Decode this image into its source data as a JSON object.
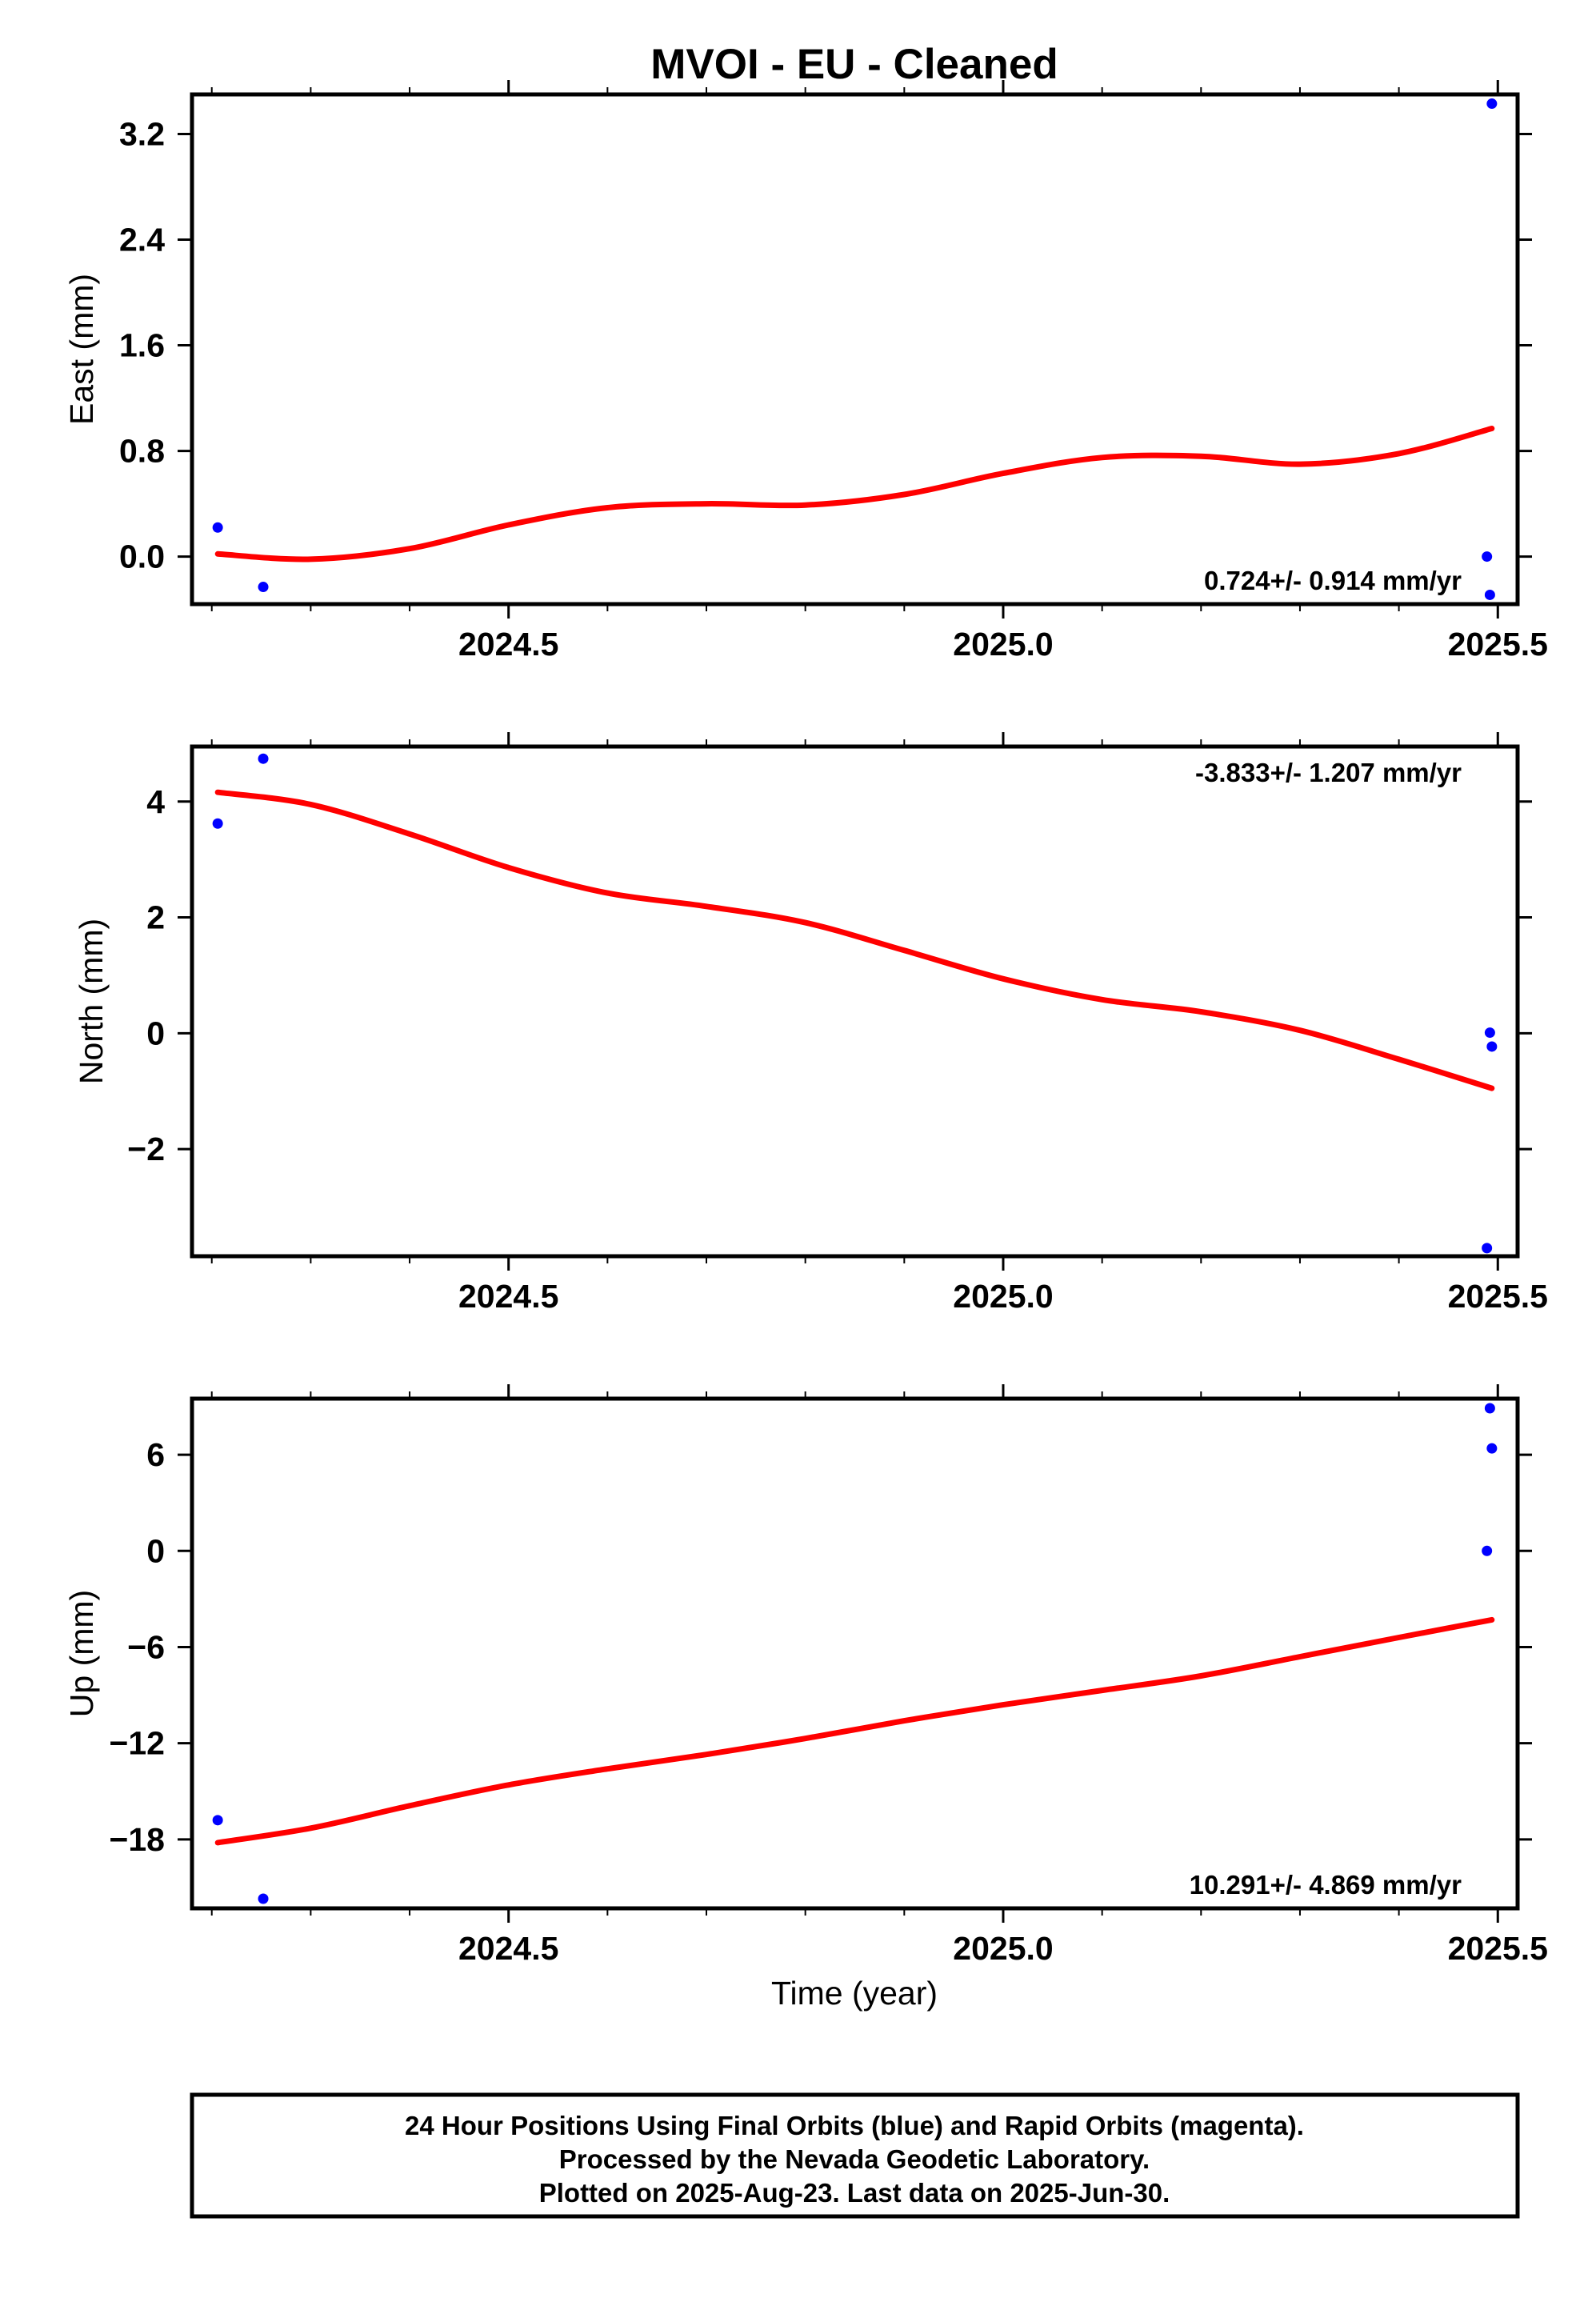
{
  "title": "MVOI  - EU - Cleaned",
  "xlabel": "Time (year)",
  "footer": [
    "24 Hour Positions Using Final Orbits (blue) and Rapid Orbits (magenta).",
    "Processed by the Nevada Geodetic Laboratory.",
    "Plotted on 2025-Aug-23. Last data on 2025-Jun-30."
  ],
  "colors": {
    "final_orbits": "#0000ff",
    "fit": "#ff0000",
    "frame": "#000000"
  },
  "chart_data": [
    {
      "type": "scatter",
      "ylabel": "East (mm)",
      "xlim": [
        2024.18,
        2025.52
      ],
      "ylim": [
        -0.36,
        3.5
      ],
      "yticks": [
        0.0,
        0.8,
        1.6,
        2.4,
        3.2
      ],
      "ytick_labels": [
        "0.0",
        "0.8",
        "1.6",
        "2.4",
        "3.2"
      ],
      "xticks": [
        2024.5,
        2025.0,
        2025.5
      ],
      "xtick_labels": [
        "2024.5",
        "2025.0",
        "2025.5"
      ],
      "rate_label": "0.724+/- 0.914 mm/yr",
      "rate_position": "bottom-right",
      "series": [
        {
          "kind": "points",
          "x": [
            2024.206,
            2024.252,
            2025.489,
            2025.492,
            2025.494
          ],
          "y": [
            0.22,
            -0.23,
            0.0,
            -0.29,
            3.43
          ]
        },
        {
          "kind": "fit",
          "x": [
            2024.206,
            2024.3,
            2024.4,
            2024.5,
            2024.6,
            2024.7,
            2024.8,
            2024.9,
            2025.0,
            2025.1,
            2025.2,
            2025.3,
            2025.4,
            2025.494
          ],
          "y": [
            0.02,
            -0.02,
            0.06,
            0.24,
            0.37,
            0.4,
            0.39,
            0.47,
            0.63,
            0.75,
            0.76,
            0.7,
            0.78,
            0.97
          ]
        }
      ]
    },
    {
      "type": "scatter",
      "ylabel": "North (mm)",
      "xlim": [
        2024.18,
        2025.52
      ],
      "ylim": [
        -3.85,
        4.95
      ],
      "yticks": [
        -2,
        0,
        2,
        4
      ],
      "ytick_labels": [
        "−2",
        "0",
        "2",
        "4"
      ],
      "xticks": [
        2024.5,
        2025.0,
        2025.5
      ],
      "xtick_labels": [
        "2024.5",
        "2025.0",
        "2025.5"
      ],
      "rate_label": "-3.833+/- 1.207 mm/yr",
      "rate_position": "top-right",
      "series": [
        {
          "kind": "points",
          "x": [
            2024.206,
            2024.252,
            2025.489,
            2025.492,
            2025.494
          ],
          "y": [
            3.62,
            4.74,
            -3.71,
            0.01,
            -0.23
          ]
        },
        {
          "kind": "fit",
          "x": [
            2024.206,
            2024.3,
            2024.4,
            2024.5,
            2024.6,
            2024.7,
            2024.8,
            2024.9,
            2025.0,
            2025.1,
            2025.2,
            2025.3,
            2025.4,
            2025.494
          ],
          "y": [
            4.16,
            3.95,
            3.44,
            2.86,
            2.42,
            2.19,
            1.91,
            1.43,
            0.94,
            0.58,
            0.37,
            0.05,
            -0.45,
            -0.95
          ]
        }
      ]
    },
    {
      "type": "scatter",
      "ylabel": "Up (mm)",
      "xlim": [
        2024.18,
        2025.52
      ],
      "ylim": [
        -22.3,
        9.5
      ],
      "yticks": [
        -18,
        -12,
        -6,
        0,
        6
      ],
      "ytick_labels": [
        "−18",
        "−12",
        "−6",
        "0",
        "6"
      ],
      "xticks": [
        2024.5,
        2025.0,
        2025.5
      ],
      "xtick_labels": [
        "2024.5",
        "2025.0",
        "2025.5"
      ],
      "rate_label": "10.291+/- 4.869 mm/yr",
      "rate_position": "bottom-right",
      "series": [
        {
          "kind": "points",
          "x": [
            2024.206,
            2024.252,
            2025.489,
            2025.492,
            2025.494
          ],
          "y": [
            -16.8,
            -21.7,
            0.0,
            8.9,
            6.4
          ]
        },
        {
          "kind": "fit",
          "x": [
            2024.206,
            2024.3,
            2024.4,
            2024.5,
            2024.6,
            2024.7,
            2024.8,
            2024.9,
            2025.0,
            2025.1,
            2025.2,
            2025.3,
            2025.4,
            2025.494
          ],
          "y": [
            -18.2,
            -17.3,
            -15.9,
            -14.6,
            -13.6,
            -12.7,
            -11.7,
            -10.6,
            -9.6,
            -8.7,
            -7.8,
            -6.6,
            -5.4,
            -4.3
          ]
        }
      ]
    }
  ]
}
